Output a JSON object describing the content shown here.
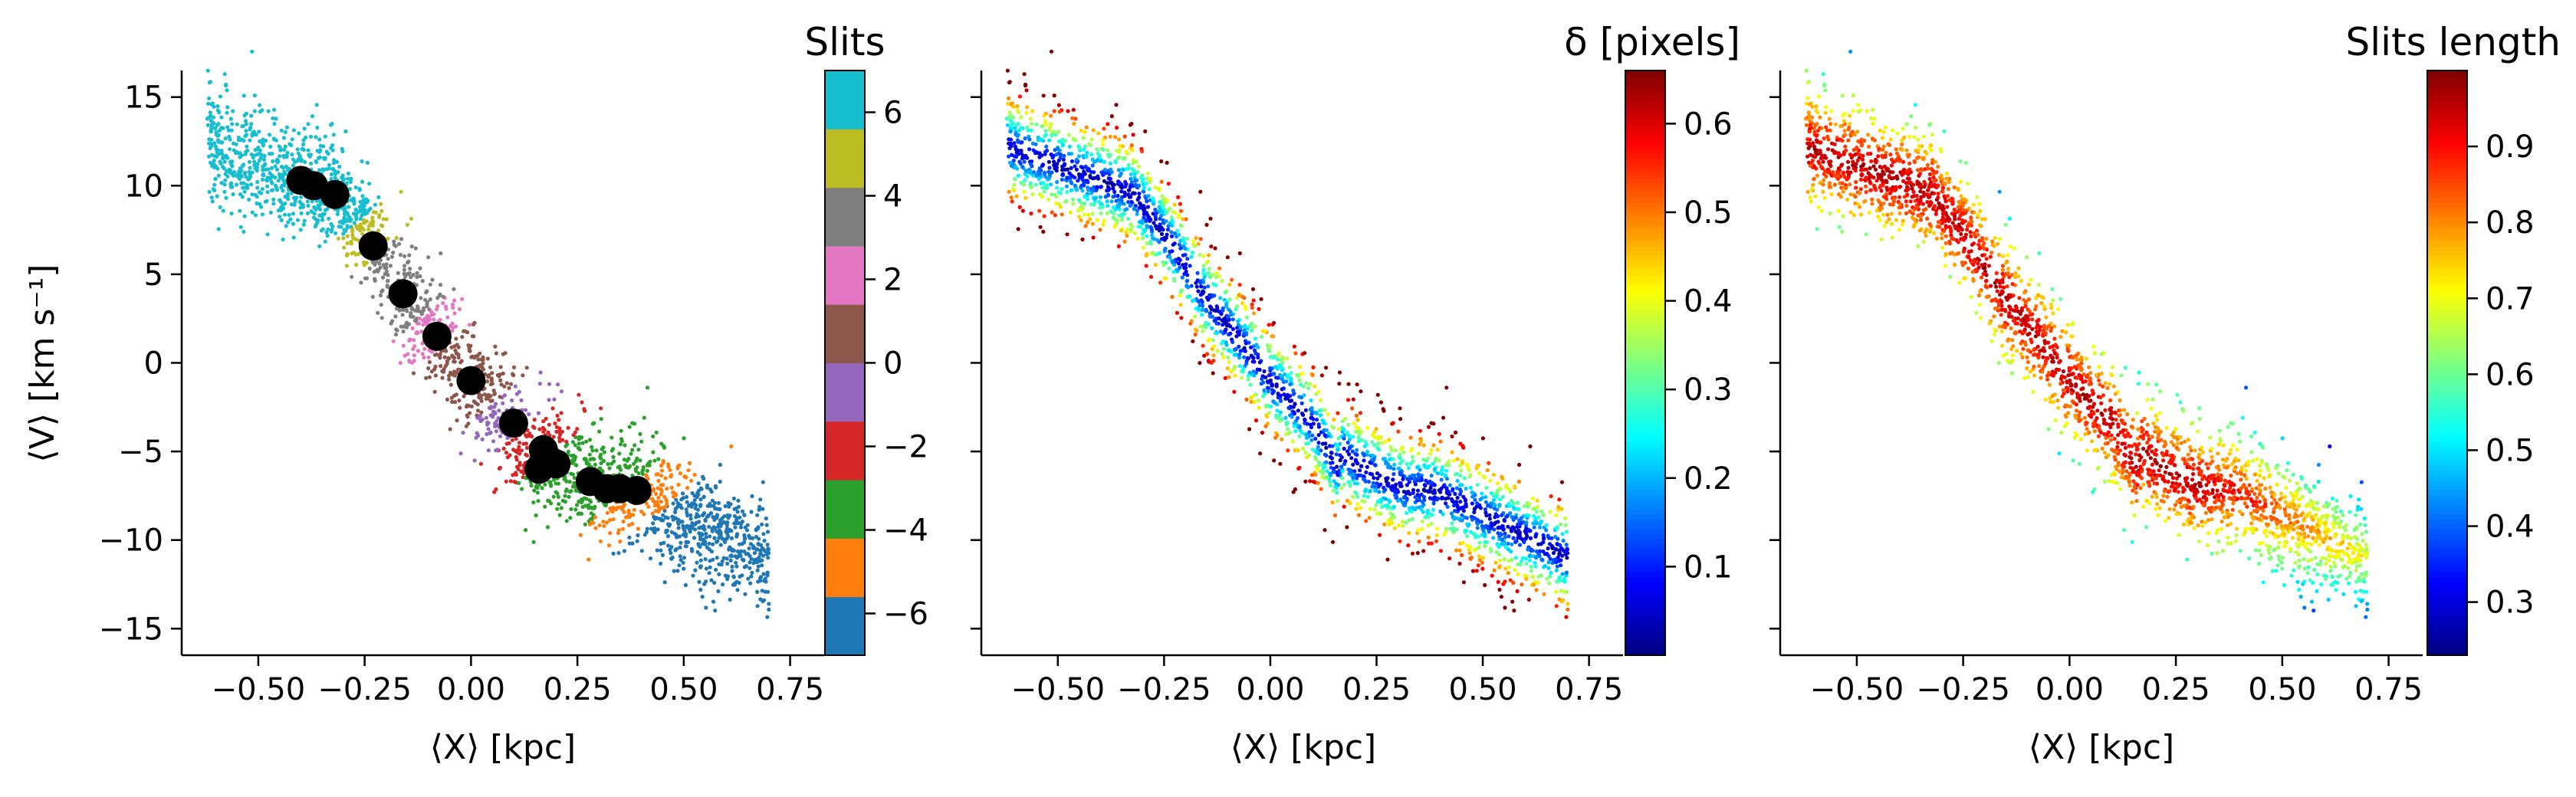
{
  "figure": {
    "panels": [
      {
        "id": "slits",
        "colorbar_title": "Slits",
        "show_ylabel": true
      },
      {
        "id": "delta",
        "colorbar_title": "δ [pixels]",
        "show_ylabel": false
      },
      {
        "id": "length",
        "colorbar_title": "Slits length",
        "show_ylabel": false
      }
    ]
  },
  "chart_data": [
    {
      "type": "scatter",
      "title": "",
      "xlabel": "⟨X⟩ [kpc]",
      "ylabel": "⟨V⟩ [km s⁻¹]",
      "xlim": [
        -0.68,
        0.83
      ],
      "ylim": [
        -16.5,
        16.5
      ],
      "xticks": [
        -0.5,
        -0.25,
        0.0,
        0.25,
        0.5,
        0.75
      ],
      "xtick_labels": [
        "−0.50",
        "−0.25",
        "0.00",
        "0.25",
        "0.50",
        "0.75"
      ],
      "yticks": [
        -15,
        -10,
        -5,
        0,
        5,
        10,
        15
      ],
      "ytick_labels": [
        "−15",
        "−10",
        "−5",
        "0",
        "5",
        "10",
        "15"
      ],
      "grid": false,
      "colorbar": {
        "title": "Slits",
        "type": "discrete",
        "range": [
          -7,
          7
        ],
        "ticks": [
          -6,
          -4,
          -2,
          0,
          2,
          4,
          6
        ],
        "tick_labels": [
          "−6",
          "−4",
          "−2",
          "0",
          "2",
          "4",
          "6"
        ],
        "colors": [
          "#1f77b4",
          "#ff7f0e",
          "#2ca02c",
          "#d62728",
          "#9467bd",
          "#8c564b",
          "#e377c2",
          "#7f7f7f",
          "#bcbd22",
          "#17becf"
        ]
      },
      "marker_series": {
        "name": "",
        "color": "#000000",
        "x": [
          -0.4,
          -0.37,
          -0.32,
          -0.23,
          -0.16,
          -0.08,
          0.0,
          0.1,
          0.17,
          0.16,
          0.2,
          0.28,
          0.32,
          0.35,
          0.39
        ],
        "y": [
          10.3,
          10.0,
          9.5,
          6.6,
          3.9,
          1.5,
          -1.0,
          -3.4,
          -4.9,
          -6.0,
          -5.7,
          -6.7,
          -7.1,
          -7.1,
          -7.2
        ]
      }
    },
    {
      "type": "scatter",
      "title": "",
      "xlabel": "⟨X⟩ [kpc]",
      "ylabel": "",
      "xlim": [
        -0.68,
        0.83
      ],
      "ylim": [
        -16.5,
        16.5
      ],
      "xticks": [
        -0.5,
        -0.25,
        0.0,
        0.25,
        0.5,
        0.75
      ],
      "xtick_labels": [
        "−0.50",
        "−0.25",
        "0.00",
        "0.25",
        "0.50",
        "0.75"
      ],
      "grid": false,
      "colorbar": {
        "title": "δ [pixels]",
        "type": "jet",
        "range": [
          0.0,
          0.66
        ],
        "ticks": [
          0.1,
          0.2,
          0.3,
          0.4,
          0.5,
          0.6
        ],
        "tick_labels": [
          "0.1",
          "0.2",
          "0.3",
          "0.4",
          "0.5",
          "0.6"
        ]
      }
    },
    {
      "type": "scatter",
      "title": "",
      "xlabel": "⟨X⟩ [kpc]",
      "ylabel": "",
      "xlim": [
        -0.68,
        0.83
      ],
      "ylim": [
        -16.5,
        16.5
      ],
      "xticks": [
        -0.5,
        -0.25,
        0.0,
        0.25,
        0.5,
        0.75
      ],
      "xtick_labels": [
        "−0.50",
        "−0.25",
        "0.00",
        "0.25",
        "0.50",
        "0.75"
      ],
      "grid": false,
      "colorbar": {
        "title": "Slits length",
        "type": "jet",
        "range": [
          0.23,
          1.0
        ],
        "ticks": [
          0.3,
          0.4,
          0.5,
          0.6,
          0.7,
          0.8,
          0.9
        ],
        "tick_labels": [
          "0.3",
          "0.4",
          "0.5",
          "0.6",
          "0.7",
          "0.8",
          "0.9"
        ]
      }
    }
  ]
}
